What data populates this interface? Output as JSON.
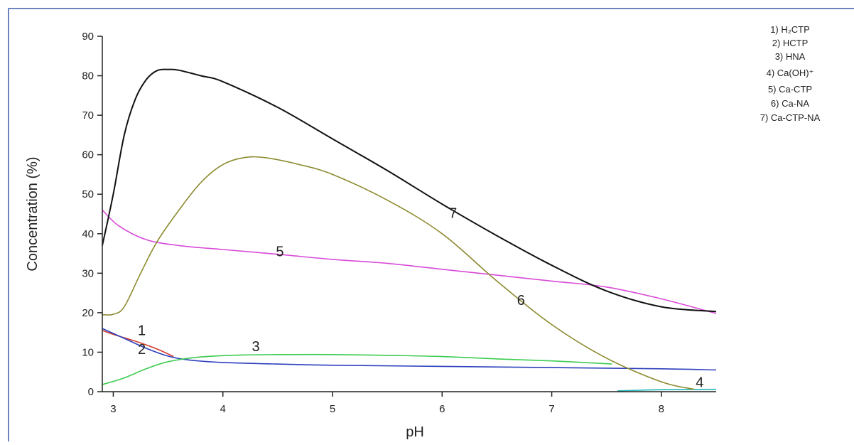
{
  "colors": {
    "frame": "#3b5ba8",
    "axis": "#222222",
    "background": "#ffffff"
  },
  "chart_data": {
    "type": "line",
    "title": "",
    "xlabel": "pH",
    "ylabel": "Concentration (%)",
    "xlim": [
      2.9,
      8.5
    ],
    "ylim": [
      0,
      90
    ],
    "xticks": [
      3,
      4,
      5,
      6,
      7,
      8
    ],
    "yticks": [
      0,
      10,
      20,
      30,
      40,
      50,
      60,
      70,
      80,
      90
    ],
    "grid": false,
    "legend_position": "top-right",
    "legend": [
      "1) H₂CTP",
      "2) HCTP",
      "3) HNA",
      "4) Ca(OH)⁺",
      "5) Ca-CTP",
      "6) Ca-NA",
      "7) Ca-CTP-NA"
    ],
    "series": [
      {
        "label": "1",
        "color": "#d03a2a",
        "points": [
          [
            2.9,
            15.5
          ],
          [
            3.0,
            14.5
          ],
          [
            3.2,
            12.8
          ],
          [
            3.4,
            10.8
          ],
          [
            3.55,
            8.9
          ]
        ]
      },
      {
        "label": "2",
        "color": "#2c3fbd",
        "points": [
          [
            2.9,
            16.0
          ],
          [
            3.1,
            13.5
          ],
          [
            3.3,
            11.0
          ],
          [
            3.5,
            9.0
          ],
          [
            3.7,
            8.0
          ],
          [
            4.0,
            7.4
          ],
          [
            4.5,
            7.0
          ],
          [
            5.0,
            6.7
          ],
          [
            6.0,
            6.4
          ],
          [
            7.0,
            6.1
          ],
          [
            8.0,
            5.8
          ],
          [
            8.5,
            5.5
          ]
        ]
      },
      {
        "label": "3",
        "color": "#3dcc52",
        "points": [
          [
            2.9,
            1.8
          ],
          [
            3.1,
            3.5
          ],
          [
            3.3,
            5.8
          ],
          [
            3.5,
            7.6
          ],
          [
            3.8,
            8.8
          ],
          [
            4.2,
            9.3
          ],
          [
            4.6,
            9.4
          ],
          [
            5.0,
            9.4
          ],
          [
            5.5,
            9.2
          ],
          [
            6.0,
            8.9
          ],
          [
            6.5,
            8.3
          ],
          [
            7.0,
            7.8
          ],
          [
            7.55,
            7.0
          ]
        ]
      },
      {
        "label": "4",
        "color": "#22b8b8",
        "points": [
          [
            7.6,
            0.2
          ],
          [
            8.0,
            0.5
          ],
          [
            8.5,
            0.6
          ]
        ]
      },
      {
        "label": "5",
        "color": "#d84ad8",
        "points": [
          [
            2.9,
            46.0
          ],
          [
            3.05,
            42.0
          ],
          [
            3.3,
            38.5
          ],
          [
            3.6,
            37.0
          ],
          [
            4.0,
            36.0
          ],
          [
            4.5,
            34.8
          ],
          [
            5.0,
            33.5
          ],
          [
            5.5,
            32.5
          ],
          [
            6.0,
            31.0
          ],
          [
            6.5,
            29.5
          ],
          [
            7.0,
            28.0
          ],
          [
            7.5,
            26.5
          ],
          [
            8.0,
            23.5
          ],
          [
            8.5,
            19.8
          ]
        ]
      },
      {
        "label": "6",
        "color": "#8c8a30",
        "points": [
          [
            2.9,
            19.5
          ],
          [
            3.0,
            19.6
          ],
          [
            3.1,
            21.5
          ],
          [
            3.25,
            30.0
          ],
          [
            3.4,
            38.0
          ],
          [
            3.6,
            46.0
          ],
          [
            3.8,
            53.0
          ],
          [
            4.0,
            57.5
          ],
          [
            4.2,
            59.3
          ],
          [
            4.4,
            59.2
          ],
          [
            4.7,
            57.5
          ],
          [
            5.0,
            55.0
          ],
          [
            5.5,
            48.5
          ],
          [
            6.0,
            40.0
          ],
          [
            6.5,
            28.0
          ],
          [
            7.0,
            17.0
          ],
          [
            7.5,
            8.5
          ],
          [
            8.0,
            2.5
          ],
          [
            8.3,
            0.6
          ]
        ]
      },
      {
        "label": "7",
        "color": "#111111",
        "points": [
          [
            2.9,
            37.0
          ],
          [
            3.0,
            50.0
          ],
          [
            3.1,
            65.0
          ],
          [
            3.2,
            74.0
          ],
          [
            3.3,
            79.0
          ],
          [
            3.4,
            81.3
          ],
          [
            3.5,
            81.6
          ],
          [
            3.6,
            81.4
          ],
          [
            3.8,
            80.0
          ],
          [
            4.0,
            78.5
          ],
          [
            4.5,
            72.0
          ],
          [
            5.0,
            64.0
          ],
          [
            5.5,
            56.0
          ],
          [
            6.0,
            47.5
          ],
          [
            6.5,
            39.5
          ],
          [
            7.0,
            32.0
          ],
          [
            7.5,
            25.5
          ],
          [
            8.0,
            21.5
          ],
          [
            8.5,
            20.3
          ]
        ]
      }
    ],
    "annotations": [
      {
        "text": "1",
        "x": 3.26,
        "y": 14.3
      },
      {
        "text": "2",
        "x": 3.26,
        "y": 9.5
      },
      {
        "text": "3",
        "x": 4.3,
        "y": 10.3
      },
      {
        "text": "4",
        "x": 8.35,
        "y": 1.2
      },
      {
        "text": "5",
        "x": 4.52,
        "y": 34.3
      },
      {
        "text": "6",
        "x": 6.72,
        "y": 22.0
      },
      {
        "text": "7",
        "x": 6.1,
        "y": 44.0
      }
    ]
  }
}
